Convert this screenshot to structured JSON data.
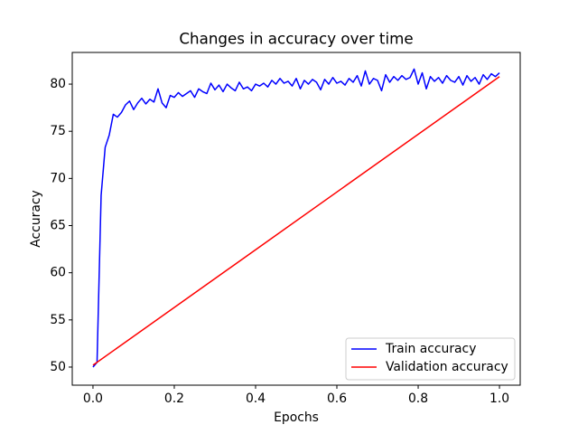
{
  "chart_data": {
    "type": "line",
    "title": "Changes in accuracy over time",
    "x_label": "Epochs",
    "y_label": "Accuracy",
    "xlim": [
      -0.051,
      1.051
    ],
    "ylim": [
      48.08,
      83.36
    ],
    "xticks": [
      {
        "value": 0,
        "label": "0.0"
      },
      0.2,
      0.4,
      0.6,
      0.8,
      {
        "value": 1,
        "label": "1.0"
      }
    ],
    "yticks": [
      50,
      55,
      60,
      65,
      70,
      75,
      80
    ],
    "legend": "lower right",
    "series": [
      {
        "name": "Train accuracy",
        "color": "#0000ff",
        "x": [
          0,
          0.01,
          0.02,
          0.03,
          0.04,
          0.05,
          0.06,
          0.07,
          0.08,
          0.09,
          0.1,
          0.11,
          0.12,
          0.13,
          0.14,
          0.15,
          0.16,
          0.17,
          0.18,
          0.19,
          0.2,
          0.21,
          0.22,
          0.23,
          0.24,
          0.25,
          0.26,
          0.27,
          0.28,
          0.29,
          0.3,
          0.31,
          0.32,
          0.33,
          0.34,
          0.35,
          0.36,
          0.37,
          0.38,
          0.39,
          0.4,
          0.41,
          0.42,
          0.43,
          0.44,
          0.45,
          0.46,
          0.47,
          0.48,
          0.49,
          0.5,
          0.51,
          0.52,
          0.53,
          0.54,
          0.55,
          0.56,
          0.57,
          0.58,
          0.59,
          0.6,
          0.61,
          0.62,
          0.63,
          0.64,
          0.65,
          0.66,
          0.67,
          0.68,
          0.69,
          0.7,
          0.71,
          0.72,
          0.73,
          0.74,
          0.75,
          0.76,
          0.77,
          0.78,
          0.79,
          0.8,
          0.81,
          0.82,
          0.83,
          0.84,
          0.85,
          0.86,
          0.87,
          0.88,
          0.89,
          0.9,
          0.91,
          0.92,
          0.93,
          0.94,
          0.95,
          0.96,
          0.97,
          0.98,
          0.99,
          1
        ],
        "values": [
          50.0,
          50.5,
          68.2,
          73.3,
          74.6,
          76.8,
          76.5,
          77.0,
          77.8,
          78.2,
          77.3,
          78.0,
          78.5,
          77.9,
          78.4,
          78.1,
          79.5,
          78.0,
          77.5,
          78.8,
          78.6,
          79.1,
          78.7,
          79.0,
          79.3,
          78.6,
          79.5,
          79.2,
          79.0,
          80.1,
          79.4,
          79.9,
          79.2,
          80.0,
          79.6,
          79.3,
          80.2,
          79.5,
          79.7,
          79.3,
          80.0,
          79.8,
          80.1,
          79.7,
          80.4,
          80.0,
          80.6,
          80.1,
          80.3,
          79.8,
          80.6,
          79.5,
          80.4,
          80.0,
          80.5,
          80.2,
          79.4,
          80.5,
          80.0,
          80.7,
          80.1,
          80.3,
          79.9,
          80.6,
          80.2,
          80.9,
          79.8,
          81.4,
          80.0,
          80.6,
          80.4,
          79.3,
          81.0,
          80.2,
          80.8,
          80.4,
          80.9,
          80.5,
          80.7,
          81.6,
          80.0,
          81.2,
          79.5,
          80.8,
          80.3,
          80.7,
          80.1,
          80.9,
          80.4,
          80.2,
          80.8,
          79.9,
          80.9,
          80.3,
          80.7,
          80.0,
          81.0,
          80.5,
          81.1,
          80.8,
          81.2
        ]
      },
      {
        "name": "Validation accuracy",
        "color": "#ff0000",
        "x": [
          0,
          1
        ],
        "values": [
          50.2,
          80.8
        ]
      }
    ]
  }
}
